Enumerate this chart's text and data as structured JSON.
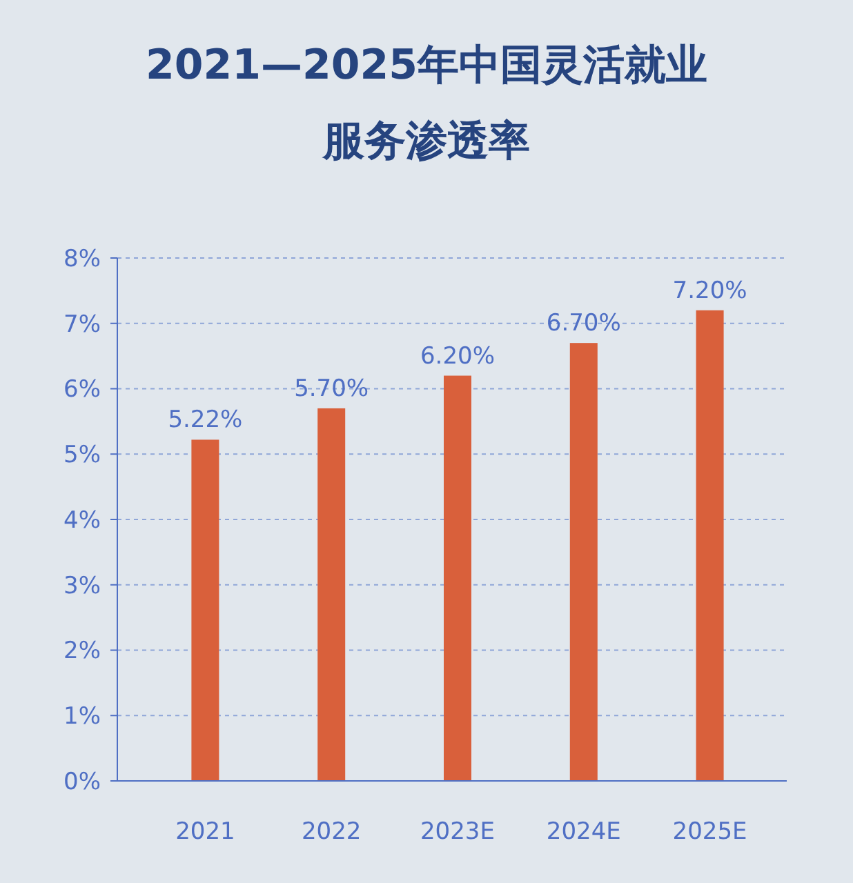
{
  "chart_data": {
    "type": "bar",
    "title": "2021—2025年中国灵活就业服务渗透率",
    "categories": [
      "2021",
      "2022",
      "2023E",
      "2024E",
      "2025E"
    ],
    "values": [
      5.22,
      5.7,
      6.2,
      6.7,
      7.2
    ],
    "value_labels": [
      "5.22%",
      "5.70%",
      "6.20%",
      "6.70%",
      "7.20%"
    ],
    "color": "#d9603b",
    "ylim": [
      0,
      8
    ],
    "yticks": [
      {
        "value": 0,
        "label": "0%"
      },
      {
        "value": 1,
        "label": "1%"
      },
      {
        "value": 2,
        "label": "2%"
      },
      {
        "value": 3,
        "label": "3%"
      },
      {
        "value": 4,
        "label": "4%"
      },
      {
        "value": 5,
        "label": "5%"
      },
      {
        "value": 6,
        "label": "6%"
      },
      {
        "value": 7,
        "label": "7%"
      },
      {
        "value": 8,
        "label": "8%"
      }
    ],
    "grid": "y"
  }
}
